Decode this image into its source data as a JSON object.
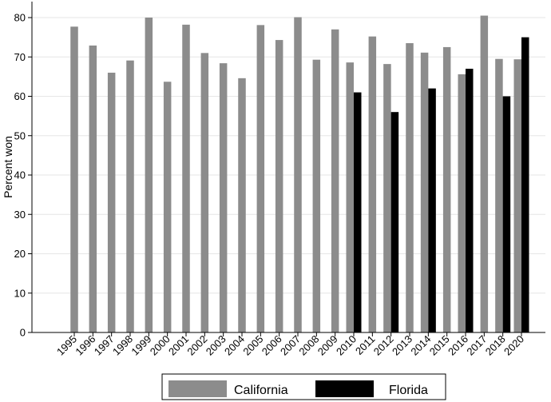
{
  "chart_data": {
    "type": "bar",
    "title": "",
    "xlabel": "",
    "ylabel": "Percent won",
    "ylim": [
      0,
      80
    ],
    "yticks": [
      0,
      10,
      20,
      30,
      40,
      50,
      60,
      70,
      80
    ],
    "grid": true,
    "legend_position": "bottom",
    "categories": [
      "1995",
      "1996",
      "1997",
      "1998",
      "1999",
      "2000",
      "2001",
      "2002",
      "2003",
      "2004",
      "2005",
      "2006",
      "2007",
      "2008",
      "2009",
      "2010",
      "2011",
      "2012",
      "2013",
      "2014",
      "2015",
      "2016",
      "2017",
      "2018",
      "2020"
    ],
    "series": [
      {
        "name": "California",
        "color": "#8c8c8c",
        "values": [
          77.7,
          72.9,
          66.0,
          69.1,
          80.0,
          63.7,
          78.2,
          71.0,
          68.4,
          64.6,
          78.1,
          74.3,
          80.1,
          69.3,
          77.0,
          68.6,
          75.2,
          68.2,
          73.5,
          71.1,
          72.5,
          65.6,
          80.5,
          69.5,
          69.4
        ]
      },
      {
        "name": "Florida",
        "color": "#000000",
        "values": [
          null,
          null,
          null,
          null,
          null,
          null,
          null,
          null,
          null,
          null,
          null,
          null,
          null,
          null,
          null,
          61.0,
          null,
          56.0,
          null,
          62.0,
          null,
          67.0,
          null,
          60.0,
          75.0
        ]
      }
    ]
  }
}
